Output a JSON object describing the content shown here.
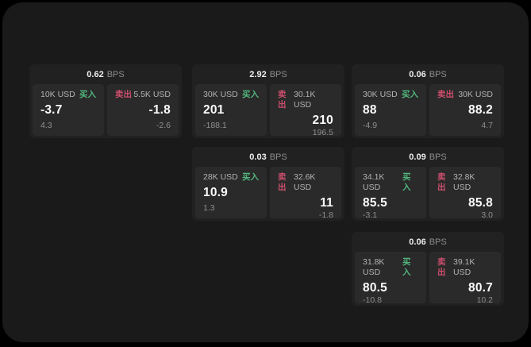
{
  "theme": {
    "outer_bg": "#000000",
    "screen_bg": "#1a1a1a",
    "card_bg": "#212121",
    "panel_bg": "#2a2a2a",
    "buy_color": "#52b77d",
    "sell_color": "#cc4f6d",
    "value_color": "#fafafa",
    "muted_color": "#8e8e8e"
  },
  "labels": {
    "buy": "买入",
    "sell": "卖出",
    "bps": "BPS"
  },
  "cards": [
    {
      "row": 1,
      "col": 1,
      "bps": "0.62",
      "buy": {
        "size": "10K USD",
        "value": "-3.7",
        "delta": "4.3"
      },
      "sell": {
        "size": "5.5K USD",
        "value": "-1.8",
        "delta": "-2.6"
      }
    },
    {
      "row": 1,
      "col": 2,
      "bps": "2.92",
      "buy": {
        "size": "30K USD",
        "value": "201",
        "delta": "-188.1"
      },
      "sell": {
        "size": "30.1K USD",
        "value": "210",
        "delta": "196.5"
      }
    },
    {
      "row": 1,
      "col": 3,
      "bps": "0.06",
      "buy": {
        "size": "30K USD",
        "value": "88",
        "delta": "-4.9"
      },
      "sell": {
        "size": "30K USD",
        "value": "88.2",
        "delta": "4.7"
      }
    },
    {
      "row": 2,
      "col": 2,
      "bps": "0.03",
      "buy": {
        "size": "28K USD",
        "value": "10.9",
        "delta": "1.3"
      },
      "sell": {
        "size": "32.6K USD",
        "value": "11",
        "delta": "-1.8"
      }
    },
    {
      "row": 2,
      "col": 3,
      "bps": "0.09",
      "buy": {
        "size": "34.1K USD",
        "value": "85.5",
        "delta": "-3.1"
      },
      "sell": {
        "size": "32.8K USD",
        "value": "85.8",
        "delta": "3.0"
      }
    },
    {
      "row": 3,
      "col": 3,
      "bps": "0.06",
      "buy": {
        "size": "31.8K USD",
        "value": "80.5",
        "delta": "-10.8"
      },
      "sell": {
        "size": "39.1K USD",
        "value": "80.7",
        "delta": "10.2"
      }
    }
  ]
}
